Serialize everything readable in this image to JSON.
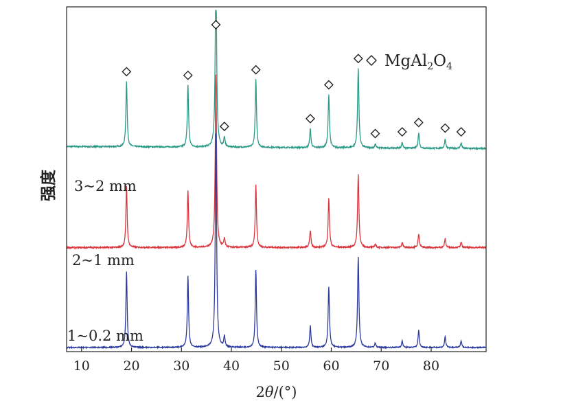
{
  "chart_data": {
    "type": "line",
    "title": "",
    "xlabel": "2θ/(°)",
    "ylabel": "强度",
    "xlim": [
      7,
      91
    ],
    "xticks": [
      10,
      20,
      30,
      40,
      50,
      60,
      70,
      80
    ],
    "yticks": [],
    "grid": false,
    "legend": {
      "position": "top-right",
      "marker": "◇",
      "label_parts": [
        {
          "text": "MgAl",
          "sub": false
        },
        {
          "text": "2",
          "sub": true
        },
        {
          "text": "O",
          "sub": false
        },
        {
          "text": "4",
          "sub": true
        }
      ]
    },
    "peaks": [
      {
        "x": 19.0,
        "h": 0.35,
        "w": 0.3
      },
      {
        "x": 31.3,
        "h": 0.33,
        "w": 0.3
      },
      {
        "x": 36.9,
        "h": 0.99,
        "w": 0.32
      },
      {
        "x": 38.6,
        "h": 0.05,
        "w": 0.3
      },
      {
        "x": 44.9,
        "h": 0.36,
        "w": 0.3
      },
      {
        "x": 55.8,
        "h": 0.1,
        "w": 0.3
      },
      {
        "x": 59.5,
        "h": 0.28,
        "w": 0.32
      },
      {
        "x": 65.4,
        "h": 0.42,
        "w": 0.32
      },
      {
        "x": 68.8,
        "h": 0.02,
        "w": 0.3
      },
      {
        "x": 74.2,
        "h": 0.03,
        "w": 0.3
      },
      {
        "x": 77.5,
        "h": 0.08,
        "w": 0.3
      },
      {
        "x": 82.8,
        "h": 0.05,
        "w": 0.3
      },
      {
        "x": 86.0,
        "h": 0.03,
        "w": 0.3
      }
    ],
    "markers_x": [
      19.0,
      31.3,
      36.9,
      38.6,
      44.9,
      55.8,
      59.5,
      65.4,
      68.8,
      74.2,
      77.5,
      82.8,
      86.0
    ],
    "series": [
      {
        "name": "3~2 mm",
        "color": "#2a9a86",
        "baseline": 0.595,
        "scale": 0.54,
        "noise": 0.004
      },
      {
        "name": "2~1 mm",
        "color": "#d9363e",
        "baseline": 0.302,
        "scale": 0.5,
        "noise": 0.004
      },
      {
        "name": "1~0.2 mm",
        "color": "#2c3a9c",
        "baseline": 0.012,
        "scale": 0.62,
        "noise": 0.003
      }
    ]
  }
}
